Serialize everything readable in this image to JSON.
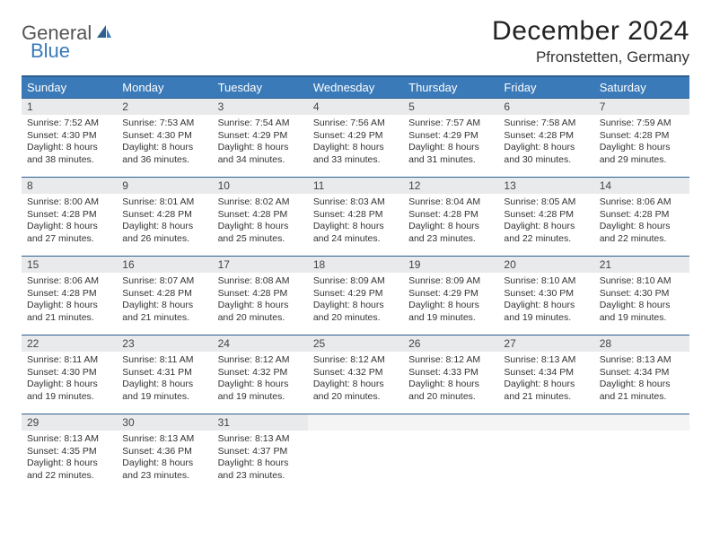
{
  "logo": {
    "part1": "General",
    "part2": "Blue"
  },
  "title": "December 2024",
  "location": "Pfronstetten, Germany",
  "colors": {
    "header_bg": "#3a7ab8",
    "header_border": "#2d5f8f",
    "daynum_bg": "#e8eaec",
    "text": "#333333"
  },
  "weekdays": [
    "Sunday",
    "Monday",
    "Tuesday",
    "Wednesday",
    "Thursday",
    "Friday",
    "Saturday"
  ],
  "weeks": [
    [
      {
        "n": "1",
        "sr": "7:52 AM",
        "ss": "4:30 PM",
        "dl": "8 hours and 38 minutes."
      },
      {
        "n": "2",
        "sr": "7:53 AM",
        "ss": "4:30 PM",
        "dl": "8 hours and 36 minutes."
      },
      {
        "n": "3",
        "sr": "7:54 AM",
        "ss": "4:29 PM",
        "dl": "8 hours and 34 minutes."
      },
      {
        "n": "4",
        "sr": "7:56 AM",
        "ss": "4:29 PM",
        "dl": "8 hours and 33 minutes."
      },
      {
        "n": "5",
        "sr": "7:57 AM",
        "ss": "4:29 PM",
        "dl": "8 hours and 31 minutes."
      },
      {
        "n": "6",
        "sr": "7:58 AM",
        "ss": "4:28 PM",
        "dl": "8 hours and 30 minutes."
      },
      {
        "n": "7",
        "sr": "7:59 AM",
        "ss": "4:28 PM",
        "dl": "8 hours and 29 minutes."
      }
    ],
    [
      {
        "n": "8",
        "sr": "8:00 AM",
        "ss": "4:28 PM",
        "dl": "8 hours and 27 minutes."
      },
      {
        "n": "9",
        "sr": "8:01 AM",
        "ss": "4:28 PM",
        "dl": "8 hours and 26 minutes."
      },
      {
        "n": "10",
        "sr": "8:02 AM",
        "ss": "4:28 PM",
        "dl": "8 hours and 25 minutes."
      },
      {
        "n": "11",
        "sr": "8:03 AM",
        "ss": "4:28 PM",
        "dl": "8 hours and 24 minutes."
      },
      {
        "n": "12",
        "sr": "8:04 AM",
        "ss": "4:28 PM",
        "dl": "8 hours and 23 minutes."
      },
      {
        "n": "13",
        "sr": "8:05 AM",
        "ss": "4:28 PM",
        "dl": "8 hours and 22 minutes."
      },
      {
        "n": "14",
        "sr": "8:06 AM",
        "ss": "4:28 PM",
        "dl": "8 hours and 22 minutes."
      }
    ],
    [
      {
        "n": "15",
        "sr": "8:06 AM",
        "ss": "4:28 PM",
        "dl": "8 hours and 21 minutes."
      },
      {
        "n": "16",
        "sr": "8:07 AM",
        "ss": "4:28 PM",
        "dl": "8 hours and 21 minutes."
      },
      {
        "n": "17",
        "sr": "8:08 AM",
        "ss": "4:28 PM",
        "dl": "8 hours and 20 minutes."
      },
      {
        "n": "18",
        "sr": "8:09 AM",
        "ss": "4:29 PM",
        "dl": "8 hours and 20 minutes."
      },
      {
        "n": "19",
        "sr": "8:09 AM",
        "ss": "4:29 PM",
        "dl": "8 hours and 19 minutes."
      },
      {
        "n": "20",
        "sr": "8:10 AM",
        "ss": "4:30 PM",
        "dl": "8 hours and 19 minutes."
      },
      {
        "n": "21",
        "sr": "8:10 AM",
        "ss": "4:30 PM",
        "dl": "8 hours and 19 minutes."
      }
    ],
    [
      {
        "n": "22",
        "sr": "8:11 AM",
        "ss": "4:30 PM",
        "dl": "8 hours and 19 minutes."
      },
      {
        "n": "23",
        "sr": "8:11 AM",
        "ss": "4:31 PM",
        "dl": "8 hours and 19 minutes."
      },
      {
        "n": "24",
        "sr": "8:12 AM",
        "ss": "4:32 PM",
        "dl": "8 hours and 19 minutes."
      },
      {
        "n": "25",
        "sr": "8:12 AM",
        "ss": "4:32 PM",
        "dl": "8 hours and 20 minutes."
      },
      {
        "n": "26",
        "sr": "8:12 AM",
        "ss": "4:33 PM",
        "dl": "8 hours and 20 minutes."
      },
      {
        "n": "27",
        "sr": "8:13 AM",
        "ss": "4:34 PM",
        "dl": "8 hours and 21 minutes."
      },
      {
        "n": "28",
        "sr": "8:13 AM",
        "ss": "4:34 PM",
        "dl": "8 hours and 21 minutes."
      }
    ],
    [
      {
        "n": "29",
        "sr": "8:13 AM",
        "ss": "4:35 PM",
        "dl": "8 hours and 22 minutes."
      },
      {
        "n": "30",
        "sr": "8:13 AM",
        "ss": "4:36 PM",
        "dl": "8 hours and 23 minutes."
      },
      {
        "n": "31",
        "sr": "8:13 AM",
        "ss": "4:37 PM",
        "dl": "8 hours and 23 minutes."
      },
      null,
      null,
      null,
      null
    ]
  ],
  "labels": {
    "sunrise": "Sunrise:",
    "sunset": "Sunset:",
    "daylight": "Daylight:"
  }
}
